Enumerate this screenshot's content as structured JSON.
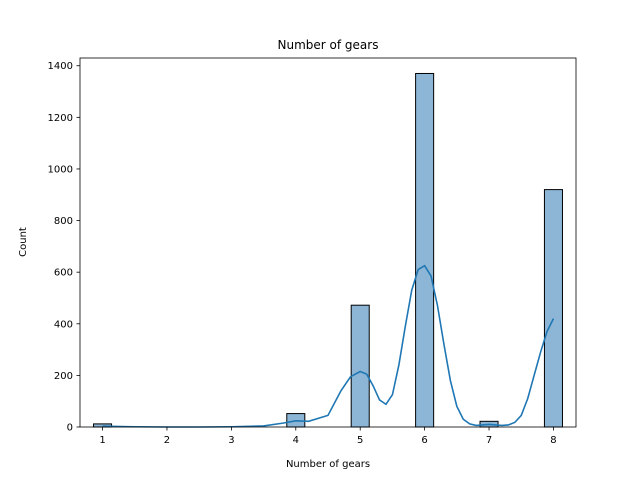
{
  "chart_data": {
    "type": "bar",
    "subtype": "histogram-with-kde",
    "title": "Number of gears",
    "xlabel": "Number of gears",
    "ylabel": "Count",
    "xlim": [
      0.65,
      8.35
    ],
    "ylim": [
      0,
      1430
    ],
    "xticks": [
      1,
      2,
      3,
      4,
      5,
      6,
      7,
      8
    ],
    "yticks": [
      0,
      200,
      400,
      600,
      800,
      1000,
      1200,
      1400
    ],
    "grid": false,
    "bin_width": 0.28,
    "bins": [
      {
        "x": 1,
        "value": 12
      },
      {
        "x": 4,
        "value": 52
      },
      {
        "x": 5,
        "value": 472
      },
      {
        "x": 6,
        "value": 1370
      },
      {
        "x": 7,
        "value": 22
      },
      {
        "x": 8,
        "value": 920
      }
    ],
    "kde": {
      "x": [
        1.0,
        1.5,
        2.0,
        2.5,
        3.0,
        3.5,
        3.8,
        4.0,
        4.2,
        4.5,
        4.7,
        4.85,
        5.0,
        5.1,
        5.2,
        5.3,
        5.4,
        5.5,
        5.6,
        5.7,
        5.8,
        5.9,
        6.0,
        6.1,
        6.2,
        6.3,
        6.4,
        6.5,
        6.6,
        6.7,
        6.8,
        6.9,
        7.0,
        7.1,
        7.2,
        7.3,
        7.4,
        7.5,
        7.6,
        7.7,
        7.8,
        7.9,
        8.0
      ],
      "values": [
        3,
        1,
        0,
        0,
        1,
        4,
        15,
        24,
        22,
        45,
        140,
        195,
        215,
        205,
        160,
        105,
        88,
        125,
        240,
        390,
        530,
        610,
        625,
        585,
        470,
        320,
        180,
        80,
        30,
        12,
        6,
        8,
        10,
        8,
        6,
        8,
        18,
        45,
        110,
        200,
        290,
        370,
        420
      ]
    },
    "bar_color": "#8db6d6",
    "bar_edge": "#000000",
    "line_color": "#1f77b4"
  }
}
